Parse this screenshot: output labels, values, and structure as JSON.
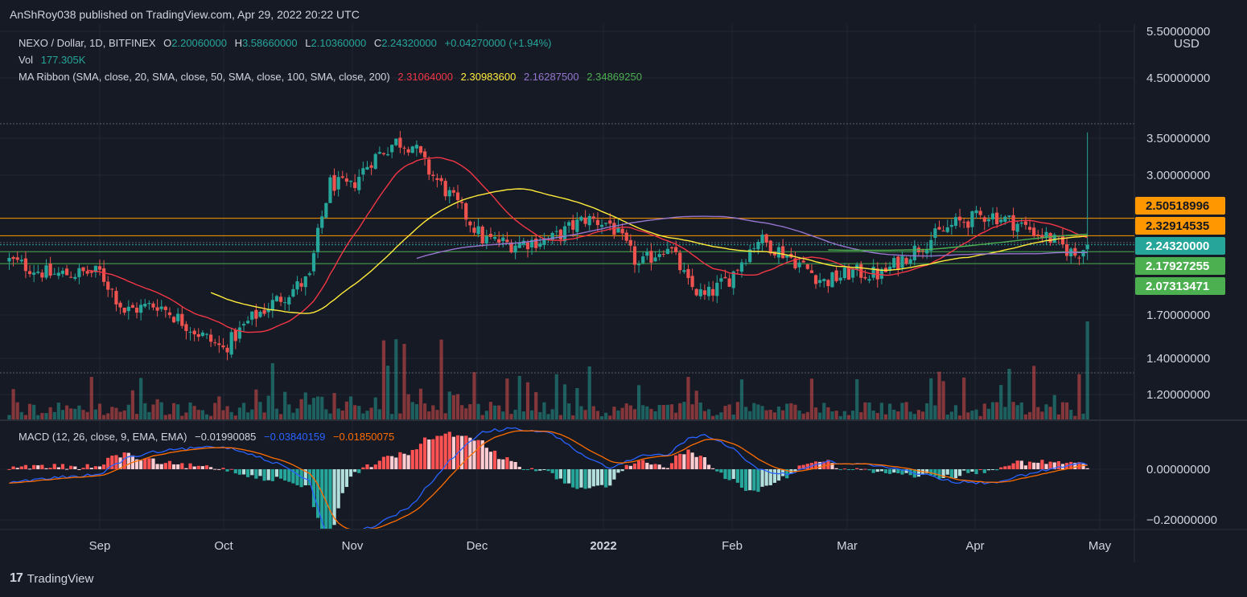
{
  "publisher": "AnShRoy038 published on TradingView.com, Apr 29, 2022 20:22 UTC",
  "brand": {
    "mark": "17",
    "name": "TradingView"
  },
  "legend": {
    "symbol": "NEXO / Dollar, 1D, BITFINEX",
    "o_label": "O",
    "o_value": "2.20060000",
    "h_label": "H",
    "h_value": "3.58660000",
    "l_label": "L",
    "l_value": "2.10360000",
    "c_label": "C",
    "c_value": "2.24320000",
    "change": "+0.04270000 (+1.94%)",
    "vol_label": "Vol",
    "vol_value": "177.305K",
    "ma_label": "MA Ribbon (SMA, close, 20, SMA, close, 50, SMA, close, 100, SMA, close, 200)",
    "ma_values": [
      "2.31064000",
      "2.30983600",
      "2.16287500",
      "2.34869250"
    ],
    "macd_label": "MACD (12, 26, close, 9, EMA, EMA)",
    "macd_values": [
      "−0.01990085",
      "−0.03840159",
      "−0.01850075"
    ]
  },
  "colors": {
    "up": "#26a69a",
    "down": "#ef5350",
    "ma20": "#f23645",
    "ma50": "#ffeb3b",
    "ma100": "#9575cd",
    "ma200": "#4caf50",
    "macd": "#2962ff",
    "signal": "#ff6d00",
    "orange_level": "#ff9800",
    "green_level": "#4caf50"
  },
  "chart_data": {
    "type": "candlestick",
    "price_axis": {
      "unit": "USD",
      "scale": "log",
      "ticks": [
        "5.50000000",
        "4.50000000",
        "3.50000000",
        "3.00000000",
        "1.70000000",
        "1.40000000",
        "1.20000000"
      ]
    },
    "price_tags": [
      {
        "value": "2.50518996",
        "color": "#ff9800"
      },
      {
        "value": "2.32914535",
        "color": "#ff9800"
      },
      {
        "value": "2.24320000",
        "color": "#26a69a"
      },
      {
        "value": "2.17927255",
        "color": "#4caf50"
      },
      {
        "value": "2.07313471",
        "color": "#4caf50"
      }
    ],
    "horizontal_levels": [
      2.50518996,
      2.32914535,
      2.17927255,
      2.07313471
    ],
    "macd_axis": {
      "ticks": [
        "0.00000000",
        "−0.20000000"
      ]
    },
    "x_axis": {
      "ticks": [
        "Sep",
        "Oct",
        "Nov",
        "Dec",
        "2022",
        "Feb",
        "Mar",
        "Apr",
        "May"
      ]
    },
    "date_range": [
      "2021-08-10",
      "2022-04-29"
    ],
    "anchors": [
      {
        "date": "2021-08-10",
        "close": 2.1,
        "macd": 0.055
      },
      {
        "date": "2021-08-20",
        "close": 1.98,
        "macd": 0.035
      },
      {
        "date": "2021-09-01",
        "close": 2.0,
        "macd": 0.02
      },
      {
        "date": "2021-09-07",
        "close": 1.7,
        "macd": -0.04
      },
      {
        "date": "2021-09-15",
        "close": 1.75,
        "macd": -0.07
      },
      {
        "date": "2021-09-25",
        "close": 1.55,
        "macd": -0.085
      },
      {
        "date": "2021-10-01",
        "close": 1.45,
        "macd": -0.09
      },
      {
        "date": "2021-10-08",
        "close": 1.65,
        "macd": -0.06
      },
      {
        "date": "2021-10-16",
        "close": 1.82,
        "macd": -0.01
      },
      {
        "date": "2021-10-22",
        "close": 1.95,
        "macd": 0.05
      },
      {
        "date": "2021-10-27",
        "close": 2.9,
        "macd": 0.3
      },
      {
        "date": "2021-11-01",
        "close": 2.85,
        "macd": 0.25
      },
      {
        "date": "2021-11-06",
        "close": 3.2,
        "macd": 0.23
      },
      {
        "date": "2021-11-12",
        "close": 3.45,
        "macd": 0.18
      },
      {
        "date": "2021-11-16",
        "close": 3.4,
        "macd": 0.14
      },
      {
        "date": "2021-11-20",
        "close": 3.05,
        "macd": 0.06
      },
      {
        "date": "2021-11-26",
        "close": 2.7,
        "macd": -0.05
      },
      {
        "date": "2021-12-03",
        "close": 2.3,
        "macd": -0.15
      },
      {
        "date": "2021-12-10",
        "close": 2.25,
        "macd": -0.16
      },
      {
        "date": "2021-12-20",
        "close": 2.3,
        "macd": -0.14
      },
      {
        "date": "2021-12-28",
        "close": 2.5,
        "macd": -0.05
      },
      {
        "date": "2022-01-03",
        "close": 2.45,
        "macd": 0.0
      },
      {
        "date": "2022-01-10",
        "close": 2.05,
        "macd": -0.05
      },
      {
        "date": "2022-01-17",
        "close": 2.25,
        "macd": -0.06
      },
      {
        "date": "2022-01-22",
        "close": 1.9,
        "macd": -0.12
      },
      {
        "date": "2022-01-26",
        "close": 1.8,
        "macd": -0.14
      },
      {
        "date": "2022-02-01",
        "close": 1.95,
        "macd": -0.09
      },
      {
        "date": "2022-02-08",
        "close": 2.3,
        "macd": 0.0
      },
      {
        "date": "2022-02-15",
        "close": 2.15,
        "macd": 0.02
      },
      {
        "date": "2022-02-24",
        "close": 1.92,
        "macd": -0.03
      },
      {
        "date": "2022-03-03",
        "close": 2.0,
        "macd": -0.02
      },
      {
        "date": "2022-03-10",
        "close": 1.98,
        "macd": -0.015
      },
      {
        "date": "2022-03-20",
        "close": 2.25,
        "macd": 0.02
      },
      {
        "date": "2022-03-28",
        "close": 2.45,
        "macd": 0.05
      },
      {
        "date": "2022-04-05",
        "close": 2.55,
        "macd": 0.055
      },
      {
        "date": "2022-04-12",
        "close": 2.45,
        "macd": 0.03
      },
      {
        "date": "2022-04-20",
        "close": 2.3,
        "macd": 0.0
      },
      {
        "date": "2022-04-26",
        "close": 2.15,
        "macd": -0.02
      },
      {
        "date": "2022-04-29",
        "close": 2.2432,
        "macd": -0.0199
      }
    ],
    "last_candle": {
      "date": "2022-04-29",
      "open": 2.2006,
      "high": 3.5866,
      "low": 2.1036,
      "close": 2.2432
    },
    "moving_average_periods": [
      20,
      50,
      100,
      200
    ]
  }
}
